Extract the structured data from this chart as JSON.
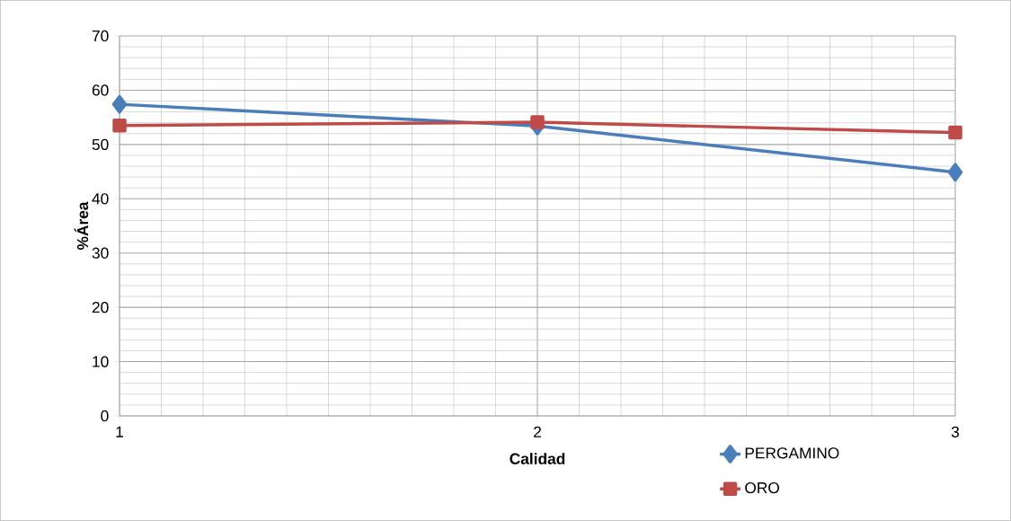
{
  "chart_data": {
    "type": "line",
    "xlabel": "Calidad",
    "ylabel": "%Área",
    "x": [
      1,
      2,
      3
    ],
    "series": [
      {
        "name": "PERGAMINO",
        "color": "#4a7ebb",
        "marker": "diamond",
        "values": [
          57.4,
          53.4,
          44.9
        ]
      },
      {
        "name": "ORO",
        "color": "#be4b48",
        "marker": "square",
        "values": [
          53.5,
          54.1,
          52.2
        ]
      }
    ],
    "xlim": [
      1,
      3
    ],
    "xticks": [
      1,
      2,
      3
    ],
    "ylim": [
      0,
      70
    ],
    "yticks": [
      0,
      10,
      20,
      30,
      40,
      50,
      60,
      70
    ],
    "grid": true,
    "legend": "bottom right"
  }
}
